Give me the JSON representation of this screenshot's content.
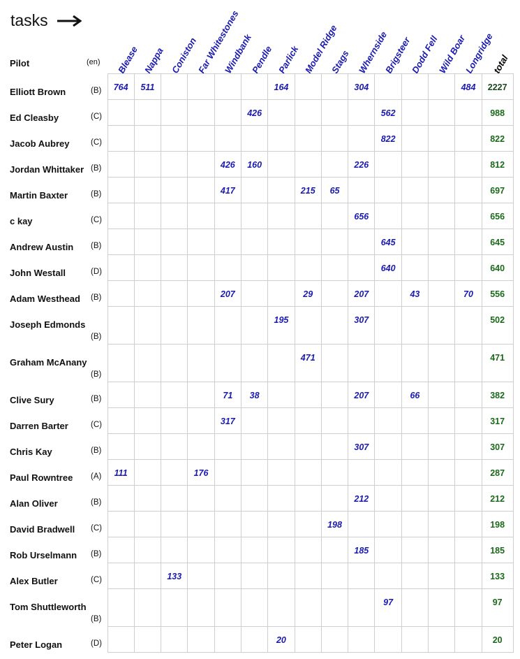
{
  "title": "tasks",
  "header": {
    "pilot": "Pilot",
    "lang": "(en)",
    "total": "total"
  },
  "tasks": [
    "Blease",
    "Nappa",
    "Coniston",
    "Far Whitestones",
    "Windbank",
    "Pendle",
    "Parlick",
    "Model Ridge",
    "Stags",
    "Whernside",
    "Brigsteer",
    "Dodd Fell",
    "Wild Boar",
    "Longridge"
  ],
  "rows": [
    {
      "name": "Elliott Brown",
      "cls": "(B)",
      "scores": [
        "764",
        "511",
        "",
        "",
        "",
        "",
        "164",
        "",
        "",
        "304",
        "",
        "",
        "",
        "484"
      ],
      "total": "2227",
      "tall": false
    },
    {
      "name": "Ed Cleasby",
      "cls": "(C)",
      "scores": [
        "",
        "",
        "",
        "",
        "",
        "426",
        "",
        "",
        "",
        "",
        "562",
        "",
        "",
        ""
      ],
      "total": "988",
      "tall": false
    },
    {
      "name": "Jacob Aubrey",
      "cls": "(C)",
      "scores": [
        "",
        "",
        "",
        "",
        "",
        "",
        "",
        "",
        "",
        "",
        "822",
        "",
        "",
        ""
      ],
      "total": "822",
      "tall": false
    },
    {
      "name": "Jordan Whittaker",
      "cls": "(B)",
      "scores": [
        "",
        "",
        "",
        "",
        "426",
        "160",
        "",
        "",
        "",
        "226",
        "",
        "",
        "",
        ""
      ],
      "total": "812",
      "tall": false
    },
    {
      "name": "Martin Baxter",
      "cls": "(B)",
      "scores": [
        "",
        "",
        "",
        "",
        "417",
        "",
        "",
        "215",
        "65",
        "",
        "",
        "",
        "",
        ""
      ],
      "total": "697",
      "tall": false
    },
    {
      "name": "c kay",
      "cls": "(C)",
      "scores": [
        "",
        "",
        "",
        "",
        "",
        "",
        "",
        "",
        "",
        "656",
        "",
        "",
        "",
        ""
      ],
      "total": "656",
      "tall": false
    },
    {
      "name": "Andrew Austin",
      "cls": "(B)",
      "scores": [
        "",
        "",
        "",
        "",
        "",
        "",
        "",
        "",
        "",
        "",
        "645",
        "",
        "",
        ""
      ],
      "total": "645",
      "tall": false
    },
    {
      "name": "John Westall",
      "cls": "(D)",
      "scores": [
        "",
        "",
        "",
        "",
        "",
        "",
        "",
        "",
        "",
        "",
        "640",
        "",
        "",
        ""
      ],
      "total": "640",
      "tall": false
    },
    {
      "name": "Adam Westhead",
      "cls": "(B)",
      "scores": [
        "",
        "",
        "",
        "",
        "207",
        "",
        "",
        "29",
        "",
        "207",
        "",
        "43",
        "",
        "70"
      ],
      "total": "556",
      "tall": false
    },
    {
      "name": "Joseph Edmonds",
      "cls": "(B)",
      "scores": [
        "",
        "",
        "",
        "",
        "",
        "",
        "195",
        "",
        "",
        "307",
        "",
        "",
        "",
        ""
      ],
      "total": "502",
      "tall": true
    },
    {
      "name": "Graham McAnany",
      "cls": "(B)",
      "scores": [
        "",
        "",
        "",
        "",
        "",
        "",
        "",
        "471",
        "",
        "",
        "",
        "",
        "",
        ""
      ],
      "total": "471",
      "tall": true
    },
    {
      "name": "Clive Sury",
      "cls": "(B)",
      "scores": [
        "",
        "",
        "",
        "",
        "71",
        "38",
        "",
        "",
        "",
        "207",
        "",
        "66",
        "",
        ""
      ],
      "total": "382",
      "tall": false
    },
    {
      "name": "Darren Barter",
      "cls": "(C)",
      "scores": [
        "",
        "",
        "",
        "",
        "317",
        "",
        "",
        "",
        "",
        "",
        "",
        "",
        "",
        ""
      ],
      "total": "317",
      "tall": false
    },
    {
      "name": "Chris Kay",
      "cls": "(B)",
      "scores": [
        "",
        "",
        "",
        "",
        "",
        "",
        "",
        "",
        "",
        "307",
        "",
        "",
        "",
        ""
      ],
      "total": "307",
      "tall": false
    },
    {
      "name": "Paul Rowntree",
      "cls": "(A)",
      "scores": [
        "111",
        "",
        "",
        "176",
        "",
        "",
        "",
        "",
        "",
        "",
        "",
        "",
        "",
        ""
      ],
      "total": "287",
      "tall": false
    },
    {
      "name": "Alan Oliver",
      "cls": "(B)",
      "scores": [
        "",
        "",
        "",
        "",
        "",
        "",
        "",
        "",
        "",
        "212",
        "",
        "",
        "",
        ""
      ],
      "total": "212",
      "tall": false
    },
    {
      "name": "David Bradwell",
      "cls": "(C)",
      "scores": [
        "",
        "",
        "",
        "",
        "",
        "",
        "",
        "",
        "198",
        "",
        "",
        "",
        "",
        ""
      ],
      "total": "198",
      "tall": false
    },
    {
      "name": "Rob Urselmann",
      "cls": "(B)",
      "scores": [
        "",
        "",
        "",
        "",
        "",
        "",
        "",
        "",
        "",
        "185",
        "",
        "",
        "",
        ""
      ],
      "total": "185",
      "tall": false
    },
    {
      "name": "Alex Butler",
      "cls": "(C)",
      "scores": [
        "",
        "",
        "133",
        "",
        "",
        "",
        "",
        "",
        "",
        "",
        "",
        "",
        "",
        ""
      ],
      "total": "133",
      "tall": false
    },
    {
      "name": "Tom Shuttleworth",
      "cls": "(B)",
      "scores": [
        "",
        "",
        "",
        "",
        "",
        "",
        "",
        "",
        "",
        "",
        "97",
        "",
        "",
        ""
      ],
      "total": "97",
      "tall": true
    },
    {
      "name": "Peter Logan",
      "cls": "(D)",
      "scores": [
        "",
        "",
        "",
        "",
        "",
        "",
        "20",
        "",
        "",
        "",
        "",
        "",
        "",
        ""
      ],
      "total": "20",
      "tall": false
    }
  ]
}
